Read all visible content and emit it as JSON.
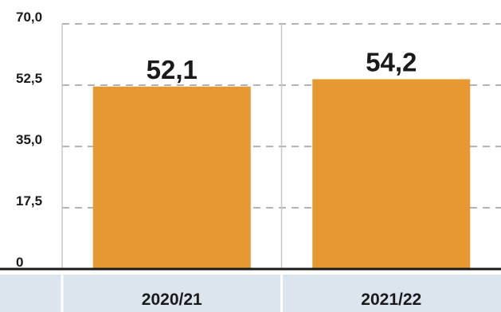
{
  "chart_data": {
    "type": "bar",
    "categories": [
      "2020/21",
      "2021/22"
    ],
    "values": [
      52.1,
      54.2
    ],
    "value_labels": [
      "52,1",
      "54,2"
    ],
    "ytick_values": [
      0,
      17.5,
      35,
      52.5,
      70
    ],
    "ytick_labels": [
      "0",
      "17,5",
      "35,0",
      "52,5",
      "70,0"
    ],
    "ylim": [
      0,
      70
    ],
    "title": "",
    "xlabel": "",
    "ylabel": "",
    "grid": true,
    "legend": "none"
  },
  "colors": {
    "bar": "#E69833",
    "category_band": "#DCE4EE",
    "gridline": "#B3B3B3",
    "axis": "#1a1a1a",
    "divider": "#C8C8C8",
    "text": "#1a1a1a"
  }
}
